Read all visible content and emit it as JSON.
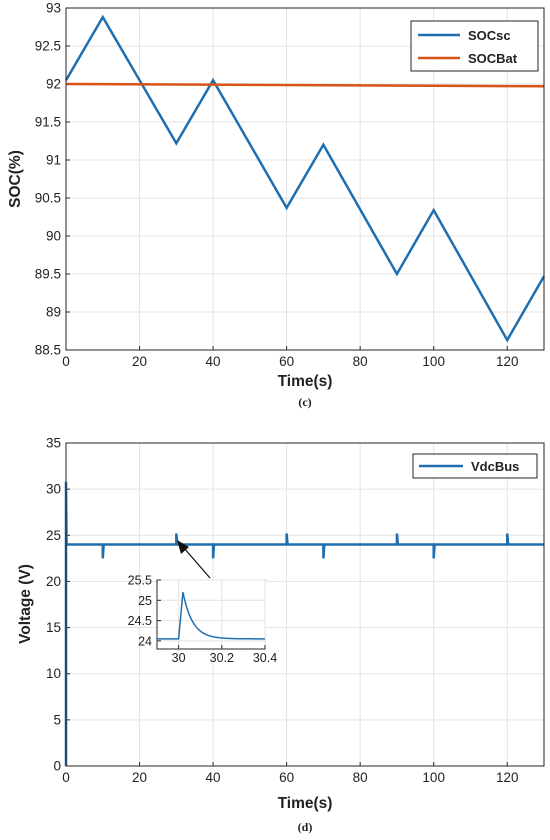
{
  "chart_data": [
    {
      "type": "line",
      "caption": "(c)",
      "xlabel": "Time(s)",
      "ylabel": "SOC(%)",
      "xlim": [
        0,
        130
      ],
      "ylim": [
        88.5,
        93
      ],
      "xticks": [
        0,
        20,
        40,
        60,
        80,
        100,
        120
      ],
      "yticks": [
        88.5,
        89,
        89.5,
        90,
        90.5,
        91,
        91.5,
        92,
        92.5,
        93
      ],
      "grid": true,
      "legend_position": "top-right",
      "series": [
        {
          "name": "SOCsc",
          "color": "#1f6fb0",
          "x": [
            0,
            10,
            30,
            40,
            60,
            70,
            90,
            100,
            120,
            130
          ],
          "y": [
            92.05,
            92.88,
            91.22,
            92.05,
            90.37,
            91.2,
            89.5,
            90.34,
            88.63,
            89.47
          ]
        },
        {
          "name": "SOCBat",
          "color": "#d95319",
          "x": [
            0,
            130
          ],
          "y": [
            92.0,
            91.97
          ]
        }
      ]
    },
    {
      "type": "line",
      "caption": "(d)",
      "xlabel": "Time(s)",
      "ylabel": "Voltage (V)",
      "xlim": [
        0,
        130
      ],
      "ylim": [
        0,
        35
      ],
      "xticks": [
        0,
        20,
        40,
        60,
        80,
        100,
        120
      ],
      "yticks": [
        0,
        5,
        10,
        15,
        20,
        25,
        30,
        35
      ],
      "grid": true,
      "legend_position": "top-right",
      "series": [
        {
          "name": "VdcBus",
          "color": "#1f6fb0",
          "nominal": 24,
          "startup_peak": 30.8,
          "spikes_up": [
            30,
            60,
            90,
            120
          ],
          "spikes_down": [
            10,
            40,
            70,
            100
          ],
          "spike_up_peak": 25.2,
          "spike_down_min": 22.5
        }
      ],
      "inset": {
        "xlim": [
          29.9,
          30.4
        ],
        "ylim": [
          23.8,
          25.5
        ],
        "xticks": [
          30,
          30.2,
          30.4
        ],
        "yticks": [
          24,
          24.5,
          25,
          25.5
        ],
        "base": 24.05,
        "peak": 25.2,
        "peak_time": 30.02,
        "decay_tau": 0.045
      }
    }
  ]
}
